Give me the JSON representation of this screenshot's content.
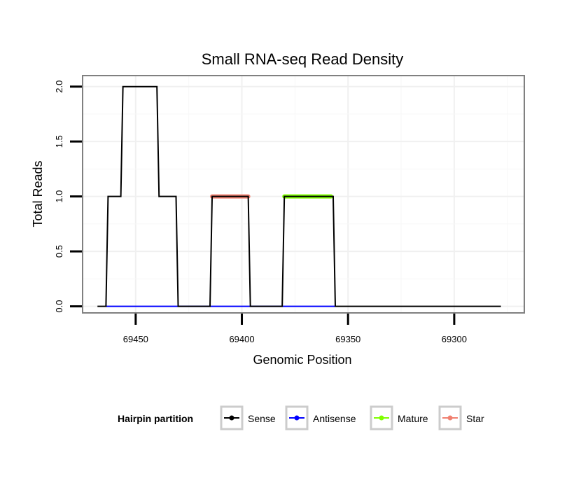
{
  "chart_data": {
    "type": "line",
    "title": "Small RNA-seq Read Density",
    "xlabel": "Genomic Position",
    "ylabel": "Total Reads",
    "xlim": [
      69475,
      69267
    ],
    "x_reversed": true,
    "ylim": [
      -0.06,
      2.1
    ],
    "xticks": [
      69450,
      69400,
      69350,
      69300
    ],
    "xtick_labels": [
      "69450",
      "69400",
      "69350",
      "69300"
    ],
    "yticks": [
      0,
      0.5,
      1,
      1.5,
      2
    ],
    "ytick_labels": [
      "0.0",
      "0.5",
      "1.0",
      "1.5",
      "2.0"
    ],
    "grid": true,
    "legend_position": "bottom",
    "legend_title": "Hairpin partition",
    "series": [
      {
        "name": "Sense",
        "color": "#000000",
        "style": "line",
        "points": [
          [
            69468,
            0
          ],
          [
            69464,
            0
          ],
          [
            69463,
            1
          ],
          [
            69457,
            1
          ],
          [
            69456,
            2
          ],
          [
            69440,
            2
          ],
          [
            69439,
            1
          ],
          [
            69431,
            1
          ],
          [
            69430,
            0
          ],
          [
            69415,
            0
          ],
          [
            69414,
            1
          ],
          [
            69397,
            1
          ],
          [
            69396,
            0
          ],
          [
            69381,
            0
          ],
          [
            69380,
            1
          ],
          [
            69357,
            1
          ],
          [
            69356,
            0
          ],
          [
            69278,
            0
          ]
        ]
      },
      {
        "name": "Antisense",
        "color": "#0000ff",
        "style": "line",
        "points": [
          [
            69464,
            0
          ],
          [
            69356,
            0
          ]
        ]
      },
      {
        "name": "Mature",
        "color": "#7fff00",
        "style": "thick",
        "points": [
          [
            69380,
            1
          ],
          [
            69358,
            1
          ]
        ]
      },
      {
        "name": "Star",
        "color": "#f08070",
        "style": "thick",
        "points": [
          [
            69414,
            1
          ],
          [
            69397,
            1
          ]
        ]
      }
    ]
  }
}
